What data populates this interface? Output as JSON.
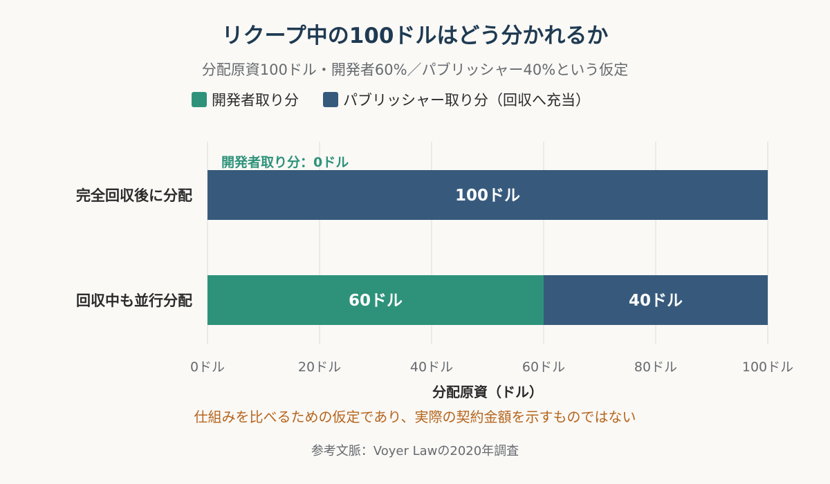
{
  "chart_data": {
    "type": "bar",
    "orientation": "horizontal",
    "stacked": true,
    "title": "リクープ中の100ドルはどう分かれるか",
    "subtitle": "分配原資100ドル・開発者60%／パブリッシャー40%という仮定",
    "categories": [
      "完全回収後に分配",
      "回収中も並行分配"
    ],
    "series": [
      {
        "name": "開発者取り分",
        "color": "#2e927a",
        "values": [
          0,
          60
        ],
        "labels": [
          "",
          "60ドル"
        ]
      },
      {
        "name": "パブリッシャー取り分（回収へ充当）",
        "color": "#375a7c",
        "values": [
          100,
          40
        ],
        "labels": [
          "100ドル",
          "40ドル"
        ]
      }
    ],
    "xlabel": "分配原資（ドル）",
    "xlim": [
      0,
      100
    ],
    "xticks": [
      {
        "value": 0,
        "label": "0ドル"
      },
      {
        "value": 20,
        "label": "20ドル"
      },
      {
        "value": 40,
        "label": "40ドル"
      },
      {
        "value": 60,
        "label": "60ドル"
      },
      {
        "value": 80,
        "label": "80ドル"
      },
      {
        "value": 100,
        "label": "100ドル"
      }
    ],
    "grid": true,
    "legend_position": "top",
    "annotations": [
      {
        "category_index": 0,
        "text": "開発者取り分：0ドル",
        "color": "#2e927a"
      }
    ],
    "note": "仕組みを比べるための仮定であり、実際の契約金額を示すものではない",
    "source": "参考文脈：Voyer Lawの2020年調査"
  }
}
